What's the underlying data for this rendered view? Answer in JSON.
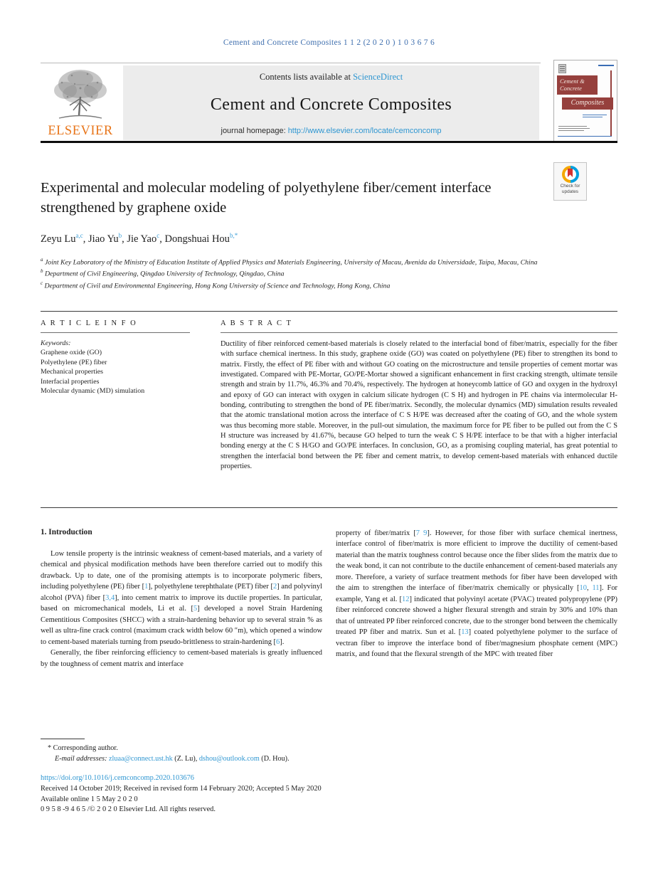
{
  "colors": {
    "link_blue": "#2e96d1",
    "citation_blue": "#3f6fae",
    "elsevier_orange": "#e8751a",
    "cover_maroon": "#96403d",
    "crossmark_blue": "#00a0df",
    "crossmark_yellow": "#f4a800",
    "crossmark_red": "#d6332f"
  },
  "masthead": {
    "citation": "Cement and Concrete Composites 1 1 2  (2 0 2 0 ) 1 0 3 6 7 6",
    "contents_prefix": "Contents lists available at ",
    "sciencedirect_link": "ScienceDirect",
    "journal_title": "Cement and Concrete Composites",
    "homepage_prefix": "journal homepage: ",
    "homepage_url": "http://www.elsevier.com/locate/cemconcomp",
    "elsevier_wordmark": "ELSEVIER",
    "cover": {
      "title_line1": "Cement &",
      "title_line2": "Concrete",
      "title_line3": "Composites"
    }
  },
  "article": {
    "title": "Experimental and molecular modeling of polyethylene fiber/cement interface strengthened by graphene oxide",
    "check_badge_text": "Check for updates",
    "authors": [
      {
        "name": "Zeyu Lu",
        "sup": "a,c",
        "sep": ", "
      },
      {
        "name": "Jiao Yu",
        "sup": "b",
        "sep": ", "
      },
      {
        "name": "Jie Yao",
        "sup": "c",
        "sep": ", "
      },
      {
        "name": "Dongshuai Hou",
        "sup": "b,*",
        "sep": ""
      }
    ],
    "affiliations": [
      {
        "sup": "a",
        "text": " Joint Key Laboratory of the Ministry of Education Institute of Applied Physics and Materials Engineering, University of Macau, Avenida da Universidade, Taipa, Macau, China"
      },
      {
        "sup": "b",
        "text": " Department of Civil Engineering, Qingdao University of Technology, Qingdao, China"
      },
      {
        "sup": "c",
        "text": " Department of Civil and Environmental Engineering, Hong Kong University of Science and Technology, Hong Kong, China"
      }
    ]
  },
  "article_info": {
    "heading": "A R T I C L E  I N F O",
    "keywords_label": "Keywords:",
    "keywords": [
      "Graphene oxide (GO)",
      "Polyethylene (PE) fiber",
      "Mechanical properties",
      "Interfacial properties",
      "Molecular dynamic (MD) simulation"
    ]
  },
  "abstract": {
    "heading": "A B S T R A C T",
    "text": "Ductility of fiber reinforced cement-based materials is closely related to the interfacial bond of fiber/matrix, especially for the fiber with surface chemical inertness. In this study, graphene oxide (GO) was coated on polyethylene (PE) fiber to strengthen its bond to matrix. Firstly, the effect of PE fiber with and without GO coating on the microstructure and tensile properties of cement mortar was investigated. Compared with PE-Mortar, GO/PE-Mortar showed a significant enhancement in first cracking strength, ultimate tensile strength and strain by 11.7%, 46.3% and 70.4%, respectively. The hydrogen at honeycomb lattice of GO and oxygen in the hydroxyl and epoxy of GO can interact with oxygen in calcium silicate hydrogen (C S H) and hydrogen in PE chains via intermolecular H-bonding, contributing to strengthen the bond of PE fiber/matrix. Secondly, the molecular dynamics (MD) simulation results revealed that the atomic translational motion across the interface of C S H/PE was decreased after the coating of GO, and the whole system was thus becoming more stable. Moreover, in the pull-out simulation, the maximum force for PE fiber to be pulled out from the C S H structure was increased by 41.67%, because GO helped to turn the weak C S H/PE interface to be that with a higher interfacial bonding energy at the C S H/GO and GO/PE interfaces. In conclusion, GO, as a promising coupling material, has great potential to strengthen the interfacial bond between the PE fiber and cement matrix, to develop cement-based materials with enhanced ductile properties."
  },
  "intro": {
    "heading": "1. Introduction",
    "p1_segments": [
      {
        "t": "Low tensile property is the intrinsic weakness of cement-based materials, and a variety of chemical and physical modification methods have been therefore carried out to modify this drawback. Up to date, one of the promising attempts is to incorporate polymeric fibers, including polyethylene (PE) fiber ["
      },
      {
        "t": "1",
        "c": true
      },
      {
        "t": "], polyethylene terephthalate (PET) fiber ["
      },
      {
        "t": "2",
        "c": true
      },
      {
        "t": "] and polyvinyl alcohol (PVA) fiber ["
      },
      {
        "t": "3,4",
        "c": true
      },
      {
        "t": "], into cement matrix to improve its ductile properties. In particular, based on micromechanical models, Li et al. ["
      },
      {
        "t": "5",
        "c": true
      },
      {
        "t": "] developed a novel Strain Hardening Cementitious Composites (SHCC) with a strain-hardening behavior up to several strain % as well as ultra-fine crack control (maximum crack width below 60 ″m), which opened a window to cement-based materials turning from pseudo-brittleness to strain-hardening ["
      },
      {
        "t": "6",
        "c": true
      },
      {
        "t": "]."
      }
    ],
    "p2_left": "Generally, the fiber reinforcing efficiency to cement-based materials is greatly influenced by the toughness of cement matrix and interface",
    "p2_right_segments": [
      {
        "t": "property of fiber/matrix ["
      },
      {
        "t": "7 9",
        "c": true
      },
      {
        "t": "]. However, for those fiber with surface chemical inertness, interface control of fiber/matrix is more efficient to improve the ductility of cement-based material than the matrix toughness control because once the fiber slides from the matrix due to the weak bond, it can not contribute to the ductile enhancement of cement-based materials any more. Therefore, a variety of surface treatment methods for fiber have been developed with the aim to strengthen the interface of fiber/matrix chemically or physically ["
      },
      {
        "t": "10",
        "c": true
      },
      {
        "t": ", "
      },
      {
        "t": "11",
        "c": true
      },
      {
        "t": "]. For example, Yang et al. ["
      },
      {
        "t": "12",
        "c": true
      },
      {
        "t": "] indicated that polyvinyl acetate (PVAC) treated polypropylene (PP) fiber reinforced concrete showed a higher flexural strength and strain by 30% and 10% than that of untreated PP fiber reinforced concrete, due to the stronger bond between the chemically treated PP fiber and matrix. Sun et al. ["
      },
      {
        "t": "13",
        "c": true
      },
      {
        "t": "] coated polyethylene polymer to the surface of vectran fiber to improve the interface bond of fiber/magnesium phosphate cement (MPC) matrix, and found that the flexural strength of the MPC with treated fiber"
      }
    ]
  },
  "footnote": {
    "marker": "*",
    "corresponding": " Corresponding author.",
    "email_label": "E-mail addresses:",
    "email1": "zluaa@connect.ust.hk",
    "email1_suffix": " (Z. Lu), ",
    "email2": "dshou@outlook.com",
    "email2_suffix": " (D. Hou)."
  },
  "bottom": {
    "doi": "https://doi.org/10.1016/j.cemconcomp.2020.103676",
    "received": "Received 14 October 2019; Received in revised form 14 February 2020; Accepted 5 May 2020",
    "available": "Available online 1 5  May 2 0 2 0",
    "copyright": "0 9 5 8 -9 4 6 5 /© 2 0 2 0  Elsevier Ltd. All rights reserved."
  }
}
